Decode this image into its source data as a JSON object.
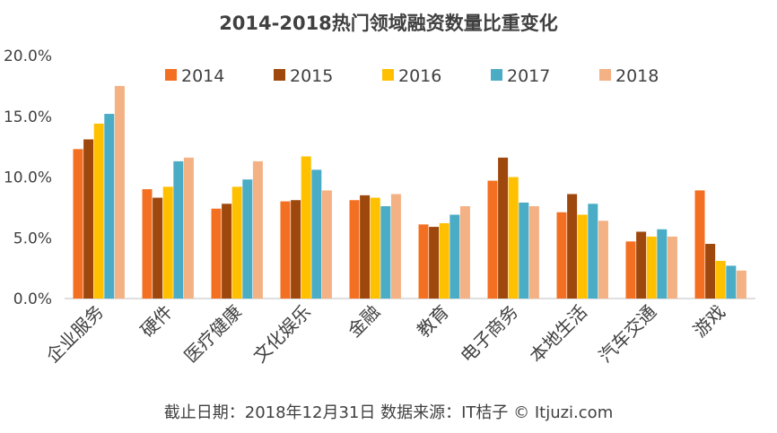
{
  "chart_data": {
    "type": "bar",
    "title": "2014-2018热门领域融资数量比重变化",
    "categories": [
      "企业服务",
      "硬件",
      "医疗健康",
      "文化娱乐",
      "金融",
      "教育",
      "电子商务",
      "本地生活",
      "汽车交通",
      "游戏"
    ],
    "series": [
      {
        "name": "2014",
        "color": "#F36F21",
        "values": [
          12.3,
          9.0,
          7.4,
          8.0,
          8.1,
          6.1,
          9.7,
          7.1,
          4.7,
          8.9
        ]
      },
      {
        "name": "2015",
        "color": "#9E480E",
        "values": [
          13.1,
          8.3,
          7.8,
          8.1,
          8.5,
          5.9,
          11.6,
          8.6,
          5.5,
          4.5
        ]
      },
      {
        "name": "2016",
        "color": "#FFC000",
        "values": [
          14.4,
          9.2,
          9.2,
          11.7,
          8.3,
          6.2,
          10.0,
          6.9,
          5.1,
          3.1
        ]
      },
      {
        "name": "2017",
        "color": "#4BACC6",
        "values": [
          15.2,
          11.3,
          9.8,
          10.6,
          7.6,
          6.9,
          7.9,
          7.8,
          5.7,
          2.7
        ]
      },
      {
        "name": "2018",
        "color": "#F4B183",
        "values": [
          17.5,
          11.6,
          11.3,
          8.9,
          8.6,
          7.6,
          7.6,
          6.4,
          5.1,
          2.3
        ]
      }
    ],
    "ylim": [
      0,
      20
    ],
    "yticks": [
      "0.0%",
      "5.0%",
      "10.0%",
      "15.0%",
      "20.0%"
    ],
    "xlabel": "",
    "ylabel": "",
    "legend_position": "top",
    "grid": false
  },
  "footer": {
    "source": "截止日期：2018年12月31日    数据来源：IT桔子 © Itjuzi.com"
  }
}
